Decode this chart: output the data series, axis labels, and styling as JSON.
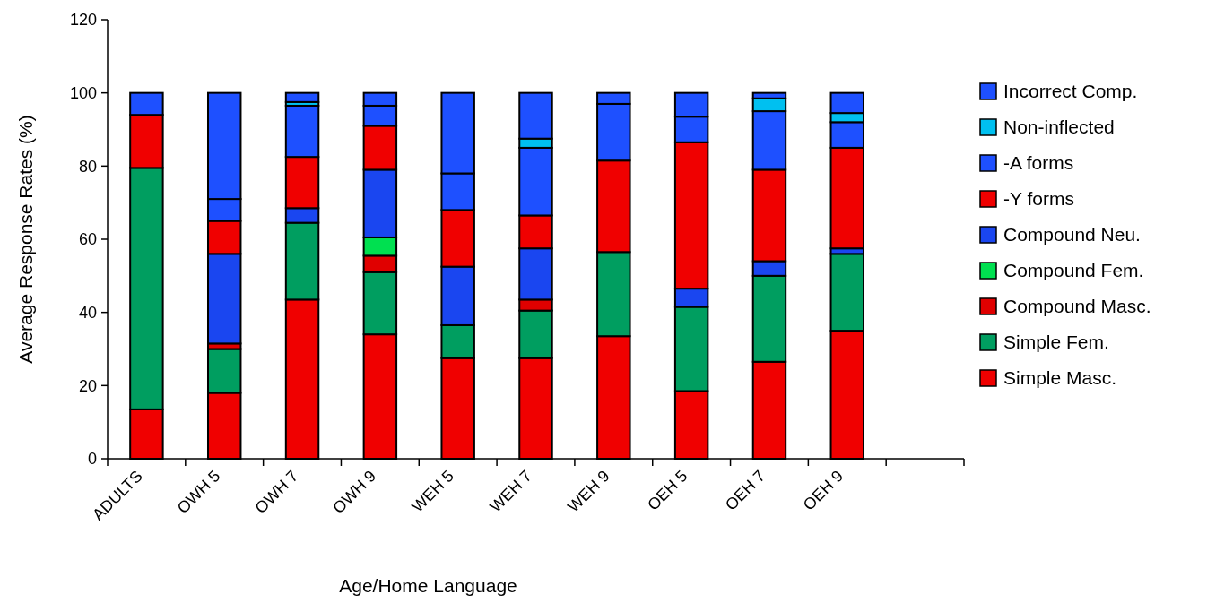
{
  "chart_data": {
    "type": "bar",
    "stacked": true,
    "xlabel": "Age/Home Language",
    "ylabel": "Average Response Rates (%)",
    "categories": [
      "ADULTS",
      "OWH 5",
      "OWH 7",
      "OWH 9",
      "WEH 5",
      "WEH 7",
      "WEH 9",
      "OEH 5",
      "OEH 7",
      "OEH 9",
      null
    ],
    "ylim": [
      0,
      120
    ],
    "yticks": [
      0,
      20,
      40,
      60,
      80,
      100,
      120
    ],
    "grid": false,
    "legend": "right",
    "series": [
      {
        "name": "Simple Masc.",
        "color": "#f00000",
        "values": [
          13.5,
          18,
          43.5,
          34,
          27.5,
          27.5,
          33.5,
          18.5,
          26.5,
          35,
          null
        ]
      },
      {
        "name": "Simple Fem.",
        "color": "#009e60",
        "values": [
          66,
          12,
          21,
          17,
          9,
          13,
          23,
          23,
          23.5,
          21,
          null
        ]
      },
      {
        "name": "Compound Masc.",
        "color": "#e00000",
        "values": [
          0,
          1.5,
          0,
          4.5,
          0,
          3,
          0,
          0,
          0,
          0,
          null
        ]
      },
      {
        "name": "Compound Fem.",
        "color": "#00e050",
        "values": [
          0,
          0,
          0,
          5,
          0,
          0,
          0,
          0,
          0,
          0,
          null
        ]
      },
      {
        "name": "Compound Neu.",
        "color": "#1a46f0",
        "values": [
          0,
          24.5,
          4,
          18.5,
          16,
          14,
          0,
          5,
          4,
          1.5,
          null
        ]
      },
      {
        "name": "-Y forms",
        "color": "#f00000",
        "values": [
          14.5,
          9,
          14,
          12,
          15.5,
          9,
          25,
          40,
          25,
          27.5,
          null
        ]
      },
      {
        "name": "-A forms",
        "color": "#1e50ff",
        "values": [
          6,
          6,
          14,
          5.5,
          10,
          18.5,
          15.5,
          7,
          16,
          7,
          null
        ]
      },
      {
        "name": "Non-inflected",
        "color": "#00c0f0",
        "values": [
          0,
          0,
          1,
          0,
          0,
          2.5,
          0,
          0,
          3.5,
          2.5,
          null
        ]
      },
      {
        "name": "Incorrect Comp.",
        "color": "#1e50ff",
        "values": [
          0,
          29,
          2.5,
          3.5,
          22,
          12.5,
          3,
          6.5,
          1.5,
          5.5,
          null
        ]
      }
    ]
  }
}
